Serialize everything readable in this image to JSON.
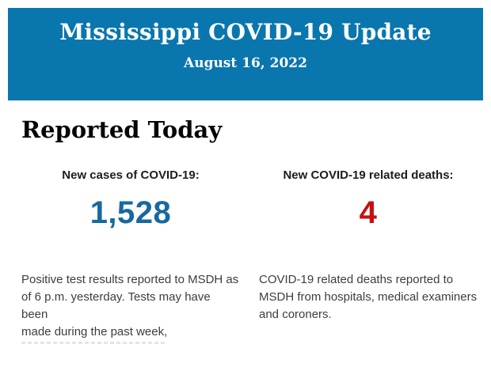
{
  "header": {
    "title": "Mississippi COVID-19 Update",
    "date": "August 16, 2022",
    "background_color": "#0a76ae",
    "text_color": "#ffffff"
  },
  "report": {
    "heading": "Reported Today"
  },
  "stats": {
    "cases": {
      "label": "New cases of COVID-19:",
      "value": "1,528",
      "value_color": "#17699f",
      "description": "Positive test results reported to MSDH as\nof 6 p.m. yesterday. Tests may have been\nmade during the past week,"
    },
    "deaths": {
      "label": "New COVID-19 related deaths:",
      "value": "4",
      "value_color": "#c70f10",
      "description": "COVID-19 related deaths reported to\nMSDH from hospitals, medical examiners\nand coroners."
    }
  }
}
